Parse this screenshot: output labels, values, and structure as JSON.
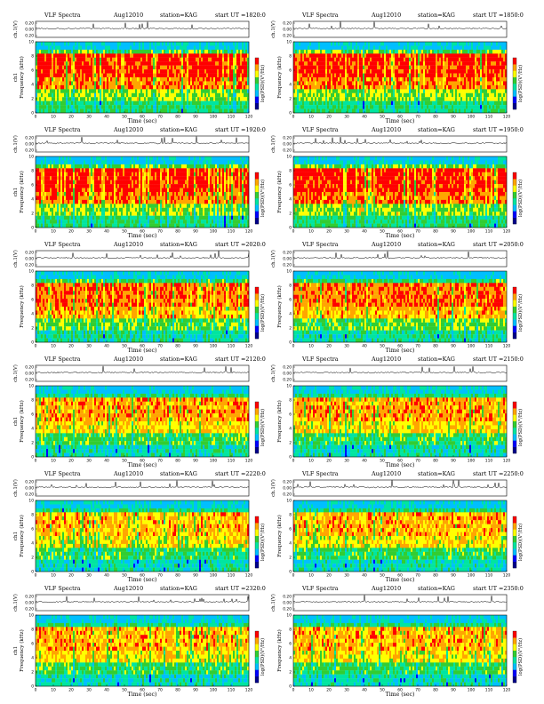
{
  "chart_data": [
    {
      "type": "heatmap",
      "title": "VLF Spectra",
      "date": "Aug12010",
      "station": "station=KAG",
      "start_label": "start  UT  =",
      "start_ut": "1820:0",
      "top_ylabel": "ch.1(V)",
      "top_yticks": [
        "0.20",
        "0.00",
        "0.20"
      ],
      "ylabel": "Frequency (kHz)",
      "ylabel_prefix": "ch1",
      "xlabel": "Time  (sec)",
      "xlim": [
        0,
        120
      ],
      "xticks": [
        0,
        10,
        20,
        30,
        40,
        50,
        60,
        70,
        80,
        90,
        100,
        110,
        120
      ],
      "ylim": [
        0,
        10
      ],
      "yticks": [
        0,
        2,
        4,
        6,
        8,
        10
      ],
      "colorbar_label": "log(PSD)(V²/Hz)",
      "intensity": 0.78
    },
    {
      "type": "heatmap",
      "title": "VLF Spectra",
      "date": "Aug12010",
      "station": "station=KAG",
      "start_label": "start  UT  =",
      "start_ut": "1850:0",
      "top_ylabel": "ch.1(V)",
      "top_yticks": [
        "0.20",
        "0.00",
        "0.20"
      ],
      "ylabel": "Frequency (kHz)",
      "ylabel_prefix": "",
      "xlabel": "Time  (sec)",
      "xlim": [
        0,
        120
      ],
      "xticks": [
        0,
        10,
        20,
        30,
        40,
        50,
        60,
        70,
        80,
        90,
        100,
        110,
        120
      ],
      "ylim": [
        0,
        10
      ],
      "yticks": [
        0,
        2,
        4,
        6,
        8,
        10
      ],
      "colorbar_label": "log(PSD)(V²/Hz)",
      "intensity": 0.78
    },
    {
      "type": "heatmap",
      "title": "VLF Spectra",
      "date": "Aug12010",
      "station": "station=KAG",
      "start_label": "start  UT  =",
      "start_ut": "1920:0",
      "top_ylabel": "ch.1(V)",
      "top_yticks": [
        "0.20",
        "0.00",
        "0.20"
      ],
      "ylabel": "Frequency (kHz)",
      "ylabel_prefix": "ch1",
      "xlabel": "Time  (sec)",
      "xlim": [
        0,
        120
      ],
      "xticks": [
        0,
        10,
        20,
        30,
        40,
        50,
        60,
        70,
        80,
        90,
        100,
        110,
        120
      ],
      "ylim": [
        0,
        10
      ],
      "yticks": [
        0,
        2,
        4,
        6,
        8,
        10
      ],
      "colorbar_label": "log(PSD)(V²/Hz)",
      "intensity": 0.8
    },
    {
      "type": "heatmap",
      "title": "VLF Spectra",
      "date": "Aug12010",
      "station": "station=KAG",
      "start_label": "start  UT  =",
      "start_ut": "1950:0",
      "top_ylabel": "ch.1(V)",
      "top_yticks": [
        "0.20",
        "0.00",
        "0.20"
      ],
      "ylabel": "Frequency (kHz)",
      "ylabel_prefix": "",
      "xlabel": "Time  (sec)",
      "xlim": [
        0,
        120
      ],
      "xticks": [
        0,
        10,
        20,
        30,
        40,
        50,
        60,
        70,
        80,
        90,
        100,
        110,
        120
      ],
      "ylim": [
        0,
        10
      ],
      "yticks": [
        0,
        2,
        4,
        6,
        8,
        10
      ],
      "colorbar_label": "log(PSD)(V²/Hz)",
      "intensity": 0.8
    },
    {
      "type": "heatmap",
      "title": "VLF Spectra",
      "date": "Aug12010",
      "station": "station=KAG",
      "start_label": "start  UT  =",
      "start_ut": "2020:0",
      "top_ylabel": "ch.1(V)",
      "top_yticks": [
        "0.20",
        "0.00",
        "0.20"
      ],
      "ylabel": "Frequency (kHz)",
      "ylabel_prefix": "",
      "xlabel": "Time  (sec)",
      "xlim": [
        0,
        120
      ],
      "xticks": [
        0,
        10,
        20,
        30,
        40,
        50,
        60,
        70,
        80,
        90,
        100,
        110,
        120
      ],
      "ylim": [
        0,
        10
      ],
      "yticks": [
        0,
        2,
        4,
        6,
        8,
        10
      ],
      "colorbar_label": "log(PSD)(V²/Hz)",
      "intensity": 0.65
    },
    {
      "type": "heatmap",
      "title": "VLF Spectra",
      "date": "Aug12010",
      "station": "station=KAG",
      "start_label": "start  UT  =",
      "start_ut": "2050:0",
      "top_ylabel": "ch.1(V)",
      "top_yticks": [
        "0.20",
        "0.00",
        "0.20"
      ],
      "ylabel": "Frequency (kHz)",
      "ylabel_prefix": "",
      "xlabel": "Time  (sec)",
      "xlim": [
        0,
        120
      ],
      "xticks": [
        0,
        10,
        20,
        30,
        40,
        50,
        60,
        70,
        80,
        90,
        100,
        110,
        120
      ],
      "ylim": [
        0,
        10
      ],
      "yticks": [
        0,
        2,
        4,
        6,
        8,
        10
      ],
      "colorbar_label": "log(PSD)(V²/Hz)",
      "intensity": 0.63
    },
    {
      "type": "heatmap",
      "title": "VLF Spectra",
      "date": "Aug12010",
      "station": "station=KAG",
      "start_label": "start  UT  =",
      "start_ut": "2120:0",
      "top_ylabel": "ch.1(V)",
      "top_yticks": [
        "0.20",
        "0.00",
        "0.20"
      ],
      "ylabel": "Frequency (kHz)",
      "ylabel_prefix": "ch1",
      "xlabel": "Time  (sec)",
      "xlim": [
        0,
        120
      ],
      "xticks": [
        0,
        10,
        20,
        30,
        40,
        50,
        60,
        70,
        80,
        90,
        100,
        110,
        120
      ],
      "ylim": [
        0,
        10
      ],
      "yticks": [
        0,
        2,
        4,
        6,
        8,
        10
      ],
      "colorbar_label": "log(PSD)(V²/Hz)",
      "intensity": 0.55
    },
    {
      "type": "heatmap",
      "title": "VLF Spectra",
      "date": "Aug12010",
      "station": "station=KAG",
      "start_label": "start  UT  =",
      "start_ut": "2150:0",
      "top_ylabel": "ch.1(V)",
      "top_yticks": [
        "0.20",
        "0.00",
        "0.20"
      ],
      "ylabel": "Frequency (kHz)",
      "ylabel_prefix": "",
      "xlabel": "Time  (sec)",
      "xlim": [
        0,
        120
      ],
      "xticks": [
        0,
        10,
        20,
        30,
        40,
        50,
        60,
        70,
        80,
        90,
        100,
        110,
        120
      ],
      "ylim": [
        0,
        10
      ],
      "yticks": [
        0,
        2,
        4,
        6,
        8,
        10
      ],
      "colorbar_label": "log(PSD)(V²/Hz)",
      "intensity": 0.55
    },
    {
      "type": "heatmap",
      "title": "VLF Spectra",
      "date": "Aug12010",
      "station": "station=KAG",
      "start_label": "start  UT  =",
      "start_ut": "2220:0",
      "top_ylabel": "ch.1(V)",
      "top_yticks": [
        "0.20",
        "0.00",
        "0.20"
      ],
      "ylabel": "Frequency (kHz)",
      "ylabel_prefix": "ch1",
      "xlabel": "Time  (sec)",
      "xlim": [
        0,
        120
      ],
      "xticks": [
        0,
        10,
        20,
        30,
        40,
        50,
        60,
        70,
        80,
        90,
        100,
        110,
        120
      ],
      "ylim": [
        0,
        10
      ],
      "yticks": [
        0,
        2,
        4,
        6,
        8,
        10
      ],
      "colorbar_label": "log(PSD)(V²/Hz)",
      "intensity": 0.5
    },
    {
      "type": "heatmap",
      "title": "VLF Spectra",
      "date": "Aug12010",
      "station": "station=KAG",
      "start_label": "start  UT  =",
      "start_ut": "2250:0",
      "top_ylabel": "ch.1(V)",
      "top_yticks": [
        "0.20",
        "0.00",
        "0.20"
      ],
      "ylabel": "Frequency (kHz)",
      "ylabel_prefix": "",
      "xlabel": "Time  (sec)",
      "xlim": [
        0,
        120
      ],
      "xticks": [
        0,
        10,
        20,
        30,
        40,
        50,
        60,
        70,
        80,
        90,
        100,
        110,
        120
      ],
      "ylim": [
        0,
        10
      ],
      "yticks": [
        0,
        2,
        4,
        6,
        8,
        10
      ],
      "colorbar_label": "log(PSD)(V²/Hz)",
      "intensity": 0.5
    },
    {
      "type": "heatmap",
      "title": "VLF Spectra",
      "date": "Aug12010",
      "station": "station=KAG",
      "start_label": "start  UT  =",
      "start_ut": "2320:0",
      "top_ylabel": "ch.1(V)",
      "top_yticks": [
        "0.20",
        "0.00",
        "0.20"
      ],
      "ylabel": "Frequency (kHz)",
      "ylabel_prefix": "ch1",
      "xlabel": "Time  (sec)",
      "xlim": [
        0,
        120
      ],
      "xticks": [
        0,
        10,
        20,
        30,
        40,
        50,
        60,
        70,
        80,
        90,
        100,
        110,
        120
      ],
      "ylim": [
        0,
        10
      ],
      "yticks": [
        0,
        2,
        4,
        6,
        8,
        10
      ],
      "colorbar_label": "log(PSD)(V²/Hz)",
      "intensity": 0.52
    },
    {
      "type": "heatmap",
      "title": "VLF Spectra",
      "date": "Aug12010",
      "station": "station=KAG",
      "start_label": "start  UT  =",
      "start_ut": "2350:0",
      "top_ylabel": "ch.1(V)",
      "top_yticks": [
        "0.20",
        "0.00",
        "0.20"
      ],
      "ylabel": "Frequency (kHz)",
      "ylabel_prefix": "",
      "xlabel": "Time  (sec)",
      "xlim": [
        0,
        120
      ],
      "xticks": [
        0,
        10,
        20,
        30,
        40,
        50,
        60,
        70,
        80,
        90,
        100,
        110,
        120
      ],
      "ylim": [
        0,
        10
      ],
      "yticks": [
        0,
        2,
        4,
        6,
        8,
        10
      ],
      "colorbar_label": "log(PSD)(V²/Hz)",
      "intensity": 0.52
    }
  ],
  "colormap": [
    "#00008b",
    "#0000ff",
    "#00bfff",
    "#00e5a0",
    "#32cd32",
    "#ffff00",
    "#ffa500",
    "#ff0000"
  ]
}
